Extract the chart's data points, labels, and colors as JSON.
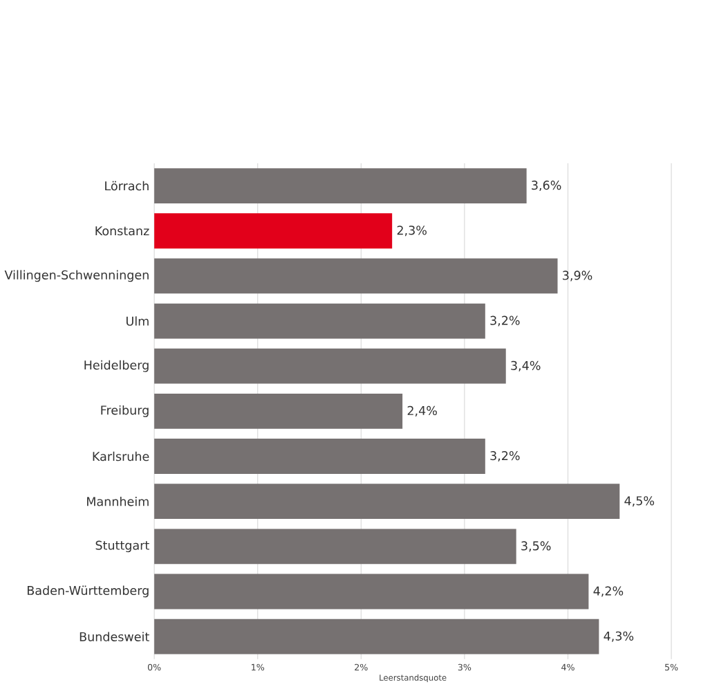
{
  "chart_data": {
    "type": "bar",
    "orientation": "horizontal",
    "xlabel": "Leerstandsquote",
    "categories": [
      "Lörrach",
      "Konstanz",
      "Villingen-Schwenningen",
      "Ulm",
      "Heidelberg",
      "Freiburg",
      "Karlsruhe",
      "Mannheim",
      "Stuttgart",
      "Baden-Württemberg",
      "Bundesweit"
    ],
    "values": [
      3.6,
      2.3,
      3.9,
      3.2,
      3.4,
      2.4,
      3.2,
      4.5,
      3.5,
      4.2,
      4.3
    ],
    "colors": [
      "#767171",
      "#e2001a",
      "#767171",
      "#767171",
      "#767171",
      "#767171",
      "#767171",
      "#767171",
      "#767171",
      "#767171",
      "#767171"
    ],
    "value_labels": [
      "3,6%",
      "2,3%",
      "3,9%",
      "3,2%",
      "3,4%",
      "2,4%",
      "3,2%",
      "4,5%",
      "3,5%",
      "4,2%",
      "4,3%"
    ],
    "xlim": [
      0,
      5
    ],
    "xticks": [
      {
        "value": 0,
        "label": "0%"
      },
      {
        "value": 1,
        "label": "1%"
      },
      {
        "value": 2,
        "label": "2%"
      },
      {
        "value": 3,
        "label": "3%"
      },
      {
        "value": 4,
        "label": "4%"
      },
      {
        "value": 5,
        "label": "5%"
      }
    ],
    "grid": "x"
  }
}
